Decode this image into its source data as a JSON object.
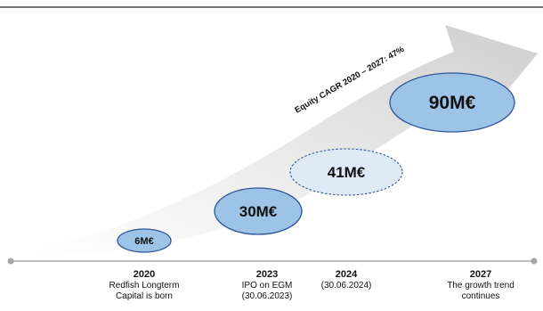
{
  "diagram": {
    "heading": "",
    "arrow_label": "Equity CAGR 2020 – 2027: 47%",
    "values": [
      {
        "label": "6M€",
        "amount_meur": 6,
        "style": "solid"
      },
      {
        "label": "30M€",
        "amount_meur": 30,
        "style": "solid"
      },
      {
        "label": "41M€",
        "amount_meur": 41,
        "style": "dashed-light"
      },
      {
        "label": "90M€",
        "amount_meur": 90,
        "style": "solid"
      }
    ],
    "timeline": [
      {
        "year": "2020",
        "lines": [
          "Redfish Longterm",
          "Capital is born"
        ]
      },
      {
        "year": "2023",
        "lines": [
          "IPO on EGM",
          "(30.06.2023)"
        ]
      },
      {
        "year": "2024",
        "lines": [
          "(30.06.2024)"
        ]
      },
      {
        "year": "2027",
        "lines": [
          "The growth trend",
          "continues"
        ]
      }
    ],
    "colors": {
      "bubble_fill": "#9dc3e6",
      "bubble_light_fill": "#deebf7",
      "bubble_stroke": "#2f5597",
      "arrow_light": "#f2f2f2",
      "arrow_dark": "#bfbfbf",
      "axis": "#a6a6a6",
      "text": "#111111"
    }
  }
}
